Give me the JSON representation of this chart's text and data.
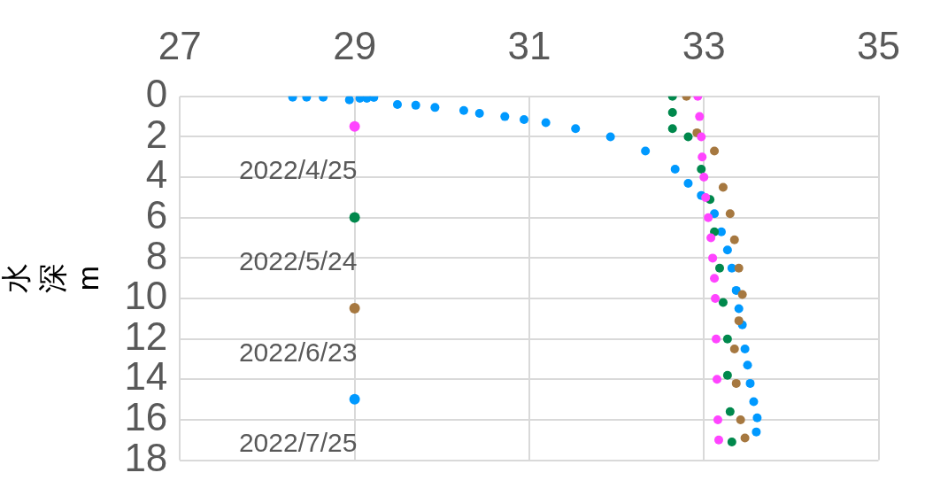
{
  "chart_data": {
    "type": "scatter",
    "ylabel": "水深m",
    "xlim": [
      27,
      35
    ],
    "xticks": [
      27,
      29,
      31,
      33,
      35
    ],
    "ylim": [
      18,
      0
    ],
    "yticks": [
      0,
      2,
      4,
      6,
      8,
      10,
      12,
      14,
      16,
      18
    ],
    "grid": true,
    "legend": "left",
    "marker": "circle",
    "series": [
      {
        "name": "2022/4/25",
        "color": "#ff44ff",
        "x": [
          32.93,
          32.95,
          32.97,
          32.98,
          33.0,
          33.02,
          33.05,
          33.08,
          33.1,
          33.12,
          33.13,
          33.14,
          33.15,
          33.16,
          33.17
        ],
        "values": [
          0,
          1,
          2,
          3,
          4,
          5,
          6,
          7,
          8,
          9,
          10,
          12,
          14,
          16,
          17
        ]
      },
      {
        "name": "2022/5/24",
        "color": "#00884c",
        "x": [
          32.64,
          32.64,
          32.64,
          32.82,
          32.97,
          33.07,
          33.12,
          33.18,
          33.22,
          33.27,
          33.27,
          33.3,
          33.32
        ],
        "values": [
          0,
          0.8,
          1.6,
          2.0,
          3.6,
          5.1,
          6.7,
          8.5,
          10.2,
          12,
          13.8,
          15.6,
          17.1
        ]
      },
      {
        "name": "2022/6/23",
        "color": "#a67840",
        "x": [
          32.8,
          32.92,
          33.12,
          33.22,
          33.3,
          33.35,
          33.4,
          33.44,
          33.4,
          33.35,
          33.37,
          33.42,
          33.47
        ],
        "values": [
          0,
          1.8,
          2.7,
          4.5,
          5.8,
          7.1,
          8.5,
          9.8,
          11.1,
          12.5,
          14.2,
          16,
          16.9
        ]
      },
      {
        "name": "2022/7/25",
        "color": "#0099ff",
        "x": [
          28.29,
          28.45,
          28.64,
          28.94,
          29.06,
          29.14,
          29.22,
          29.49,
          29.7,
          29.92,
          30.25,
          30.43,
          30.72,
          30.94,
          31.19,
          31.53,
          31.93,
          32.33,
          32.67,
          32.82,
          32.97,
          33.12,
          33.2,
          33.27,
          33.32,
          33.37,
          33.4,
          33.44,
          33.47,
          33.5,
          33.53,
          33.57,
          33.61,
          33.6
        ],
        "values": [
          0.04,
          0.04,
          0.04,
          0.17,
          0.1,
          0.1,
          0.05,
          0.4,
          0.44,
          0.55,
          0.7,
          0.84,
          1.0,
          1.15,
          1.3,
          1.6,
          2.0,
          2.7,
          3.6,
          4.3,
          4.9,
          5.8,
          6.7,
          7.6,
          8.5,
          9.6,
          10.5,
          11.3,
          12.5,
          13.3,
          14.2,
          15.1,
          15.9,
          16.6
        ]
      }
    ]
  }
}
